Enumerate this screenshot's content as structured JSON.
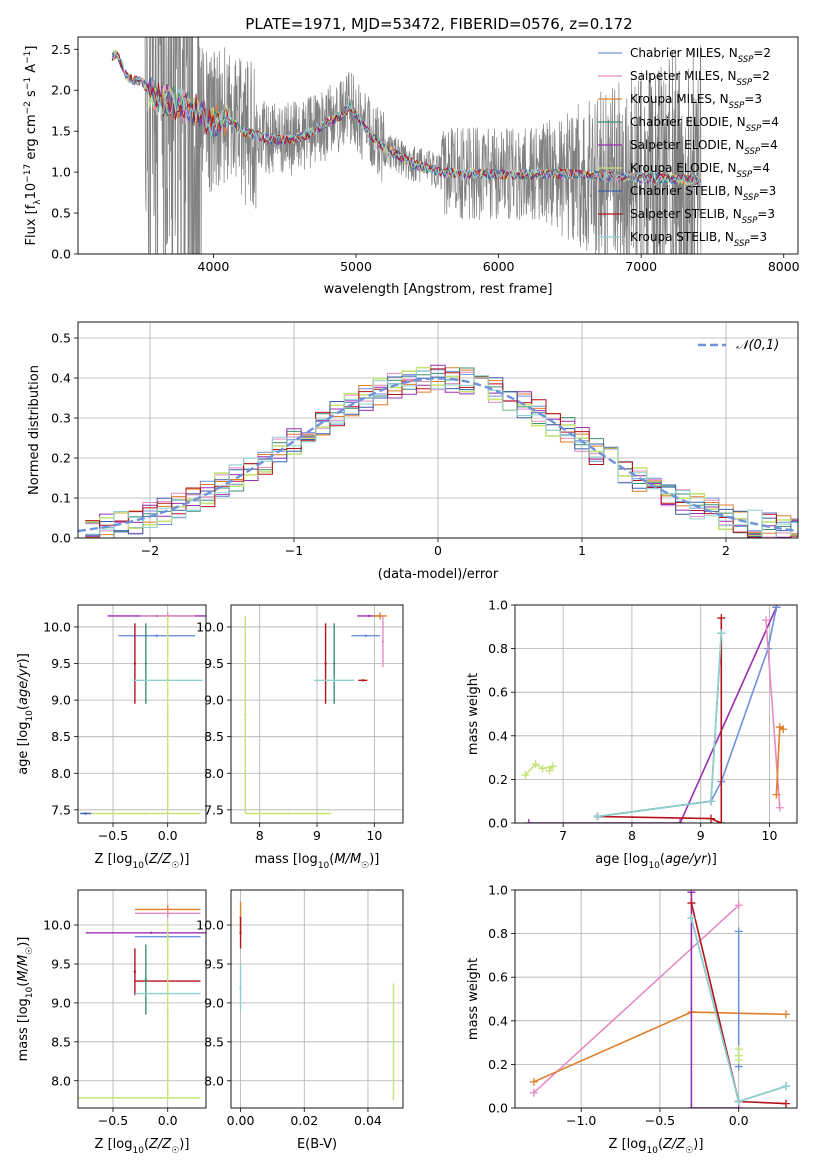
{
  "figure": {
    "title": "PLATE=1971, MJD=53472, FIBERID=0576, z=0.172"
  },
  "colors": {
    "Chabrier MILES": "#6f92dc",
    "Salpeter MILES": "#e58bc3",
    "Kroupa MILES": "#e07f2a",
    "Chabrier ELODIE": "#3f8f73",
    "Salpeter ELODIE": "#9b2fb2",
    "Kroupa ELODIE": "#c6e37a",
    "Chabrier STELIB": "#3b5fa8",
    "Salpeter STELIB": "#b5121b",
    "Kroupa STELIB": "#8fd0d0",
    "data": "#808080",
    "gauss": "#6f92dc"
  },
  "chart_data": [
    {
      "id": "spectrum",
      "type": "line",
      "xlabel": "wavelength [Angstrom, rest frame]",
      "ylabel": "Flux [f_λ 10^-17 erg cm^-2 s^-1 A^-1]",
      "xlim": [
        3050,
        8100
      ],
      "ylim": [
        0,
        2.65
      ],
      "xticks": [
        4000,
        5000,
        6000,
        7000,
        8000
      ],
      "yticks": [
        0.0,
        0.5,
        1.0,
        1.5,
        2.0,
        2.5
      ],
      "legend_position": "top-right",
      "legend": [
        {
          "base": "Chabrier MILES, N",
          "sub": "SSP",
          "tail": "=2"
        },
        {
          "base": "Salpeter MILES, N",
          "sub": "SSP",
          "tail": "=2"
        },
        {
          "base": "Kroupa MILES, N",
          "sub": "SSP",
          "tail": "=3"
        },
        {
          "base": "Chabrier ELODIE, N",
          "sub": "SSP",
          "tail": "=4"
        },
        {
          "base": "Salpeter ELODIE, N",
          "sub": "SSP",
          "tail": "=4"
        },
        {
          "base": "Kroupa ELODIE, N",
          "sub": "SSP",
          "tail": "=4"
        },
        {
          "base": "Chabrier STELIB, N",
          "sub": "SSP",
          "tail": "=3"
        },
        {
          "base": "Salpeter STELIB, N",
          "sub": "SSP",
          "tail": "=3"
        },
        {
          "base": "Kroupa STELIB, N",
          "sub": "SSP",
          "tail": "=3"
        }
      ],
      "data_range": [
        3520,
        7420
      ],
      "model_range": [
        3290,
        7420
      ],
      "model_curve": {
        "x": [
          3280,
          3320,
          3400,
          3500,
          3600,
          3700,
          3800,
          3900,
          4000,
          4100,
          4200,
          4300,
          4400,
          4500,
          4600,
          4700,
          4800,
          4900,
          4960,
          5000,
          5100,
          5200,
          5300,
          5400,
          5500,
          5600,
          5800,
          6000,
          6200,
          6400,
          6600,
          6800,
          7000,
          7200,
          7420
        ],
        "y": [
          2.4,
          2.45,
          2.15,
          2.1,
          1.9,
          1.85,
          1.8,
          1.7,
          1.6,
          1.65,
          1.5,
          1.45,
          1.4,
          1.4,
          1.42,
          1.5,
          1.6,
          1.7,
          1.8,
          1.7,
          1.45,
          1.3,
          1.2,
          1.1,
          1.05,
          1.0,
          0.98,
          0.97,
          0.97,
          0.98,
          0.97,
          0.95,
          0.93,
          0.92,
          0.9
        ]
      }
    },
    {
      "id": "residuals",
      "type": "histogram",
      "xlabel": "(data-model)/error",
      "ylabel": "Normed distribution",
      "xlim": [
        -2.5,
        2.5
      ],
      "ylim": [
        0,
        0.54
      ],
      "xticks": [
        -2,
        -1,
        0,
        1,
        2
      ],
      "yticks": [
        0.0,
        0.1,
        0.2,
        0.3,
        0.4,
        0.5
      ],
      "legend_position": "top-right",
      "legend": "𝒩(0,1)",
      "bin_width": 0.1
    },
    {
      "id": "age_vs_Z",
      "type": "errorbar",
      "xlabel": "Z [log10(Z/Z☉)]",
      "ylabel": "age [log10(age/yr)]",
      "xlim": [
        -0.82,
        0.35
      ],
      "ylim": [
        7.32,
        10.3
      ],
      "xticks": [
        -0.5,
        0.0
      ],
      "yticks": [
        7.5,
        8.0,
        8.5,
        9.0,
        9.5,
        10.0
      ],
      "points": [
        {
          "s": "Salpeter ELODIE",
          "x": -0.1,
          "y": 10.15,
          "xerr": 0.45,
          "yerr": 0.0
        },
        {
          "s": "Salpeter MILES",
          "x": 0.0,
          "y": 10.15,
          "xerr": 0.25,
          "yerr": 0.05
        },
        {
          "s": "Chabrier MILES",
          "x": -0.1,
          "y": 9.88,
          "xerr": 0.35,
          "yerr": 0.02
        },
        {
          "s": "Salpeter STELIB",
          "x": -0.3,
          "y": 9.5,
          "xerr": 0.0,
          "yerr": 0.55
        },
        {
          "s": "Chabrier ELODIE",
          "x": -0.2,
          "y": 9.5,
          "xerr": 0.0,
          "yerr": 0.55
        },
        {
          "s": "Kroupa STELIB",
          "x": 0.0,
          "y": 9.27,
          "xerr": 0.32,
          "yerr": 0.0
        },
        {
          "s": "Kroupa ELODIE",
          "x": 0.0,
          "y": 8.8,
          "xerr": 0.0,
          "yerr": 1.35
        },
        {
          "s": "Kroupa ELODIE",
          "x": -0.2,
          "y": 7.45,
          "xerr": 0.5,
          "yerr": 0.0
        },
        {
          "s": "Chabrier STELIB",
          "x": -0.75,
          "y": 7.45,
          "xerr": 0.05,
          "yerr": 0.0
        }
      ]
    },
    {
      "id": "age_vs_mass",
      "type": "errorbar",
      "xlabel": "mass [log10(M/M☉)]",
      "ylabel": "",
      "xlim": [
        7.5,
        10.5
      ],
      "ylim": [
        7.32,
        10.3
      ],
      "xticks": [
        8,
        9,
        10
      ],
      "yticks": [
        7.5,
        8.0,
        8.5,
        9.0,
        9.5,
        10.0
      ],
      "points": [
        {
          "s": "Salpeter ELODIE",
          "x": 9.9,
          "y": 10.15,
          "xerr": 0.2,
          "yerr": 0.0
        },
        {
          "s": "Kroupa MILES",
          "x": 10.1,
          "y": 10.15,
          "xerr": 0.12,
          "yerr": 0.05
        },
        {
          "s": "Salpeter MILES",
          "x": 10.15,
          "y": 9.8,
          "xerr": 0.0,
          "yerr": 0.35
        },
        {
          "s": "Chabrier MILES",
          "x": 9.85,
          "y": 9.88,
          "xerr": 0.25,
          "yerr": 0.02
        },
        {
          "s": "Salpeter STELIB",
          "x": 9.15,
          "y": 9.5,
          "xerr": 0.0,
          "yerr": 0.55
        },
        {
          "s": "Chabrier ELODIE",
          "x": 9.3,
          "y": 9.5,
          "xerr": 0.0,
          "yerr": 0.55
        },
        {
          "s": "Kroupa STELIB",
          "x": 9.3,
          "y": 9.27,
          "xerr": 0.35,
          "yerr": 0.0
        },
        {
          "s": "Salpeter STELIB",
          "x": 9.8,
          "y": 9.27,
          "xerr": 0.08,
          "yerr": 0.0
        },
        {
          "s": "Kroupa ELODIE",
          "x": 7.75,
          "y": 8.8,
          "xerr": 0.0,
          "yerr": 1.35
        },
        {
          "s": "Kroupa ELODIE",
          "x": 8.5,
          "y": 7.45,
          "xerr": 0.75,
          "yerr": 0.0
        }
      ]
    },
    {
      "id": "weight_vs_age",
      "type": "line",
      "xlabel": "age [log10(age/yr)]",
      "ylabel": "mass weight",
      "xlim": [
        6.3,
        10.4
      ],
      "ylim": [
        0,
        1.0
      ],
      "xticks": [
        7,
        8,
        9,
        10
      ],
      "yticks": [
        0.0,
        0.2,
        0.4,
        0.6,
        0.8,
        1.0
      ],
      "series": [
        {
          "s": "Salpeter ELODIE",
          "x": [
            6.5,
            8.7,
            10.1
          ],
          "y": [
            0.0,
            0.0,
            0.99
          ]
        },
        {
          "s": "Chabrier MILES",
          "x": [
            7.5,
            9.15,
            9.3,
            9.98,
            10.1
          ],
          "y": [
            0.03,
            0.1,
            0.19,
            0.8,
            0.99
          ]
        },
        {
          "s": "Salpeter STELIB",
          "x": [
            7.5,
            9.15,
            9.3,
            9.3
          ],
          "y": [
            0.03,
            0.02,
            0.0,
            0.94
          ]
        },
        {
          "s": "Chabrier ELODIE",
          "x": [
            7.5,
            9.15,
            9.3
          ],
          "y": [
            0.03,
            0.1,
            0.87
          ]
        },
        {
          "s": "Kroupa STELIB",
          "x": [
            7.5,
            9.15,
            9.3
          ],
          "y": [
            0.03,
            0.1,
            0.87
          ]
        },
        {
          "s": "Salpeter MILES",
          "x": [
            9.95,
            10.15
          ],
          "y": [
            0.93,
            0.07
          ]
        },
        {
          "s": "Kroupa MILES",
          "x": [
            10.1,
            10.15,
            10.2
          ],
          "y": [
            0.13,
            0.44,
            0.43
          ]
        },
        {
          "s": "Kroupa ELODIE",
          "x": [
            6.45,
            6.6,
            6.7,
            6.85,
            6.8
          ],
          "y": [
            0.22,
            0.27,
            0.25,
            0.26,
            0.24
          ]
        }
      ]
    },
    {
      "id": "mass_vs_Z",
      "type": "errorbar",
      "xlabel": "Z [log10(Z/Z☉)]",
      "ylabel": "mass [log10(M/M☉)]",
      "xlim": [
        -0.82,
        0.35
      ],
      "ylim": [
        7.65,
        10.45
      ],
      "xticks": [
        -0.5,
        0.0
      ],
      "yticks": [
        8.0,
        8.5,
        9.0,
        9.5,
        10.0
      ],
      "points": [
        {
          "s": "Kroupa MILES",
          "x": 0.0,
          "y": 10.2,
          "xerr": 0.3,
          "yerr": 0.05
        },
        {
          "s": "Salpeter MILES",
          "x": 0.0,
          "y": 10.15,
          "xerr": 0.3,
          "yerr": 0.05
        },
        {
          "s": "Salpeter ELODIE",
          "x": -0.15,
          "y": 9.9,
          "xerr": 0.6,
          "yerr": 0.0
        },
        {
          "s": "Chabrier MILES",
          "x": 0.0,
          "y": 9.85,
          "xerr": 0.3,
          "yerr": 0.05
        },
        {
          "s": "Salpeter STELIB",
          "x": 0.0,
          "y": 9.28,
          "xerr": 0.3,
          "yerr": 0.0
        },
        {
          "s": "Salpeter STELIB",
          "x": -0.3,
          "y": 9.4,
          "xerr": 0.0,
          "yerr": 0.3
        },
        {
          "s": "Chabrier ELODIE",
          "x": -0.2,
          "y": 9.3,
          "xerr": 0.0,
          "yerr": 0.45
        },
        {
          "s": "Kroupa STELIB",
          "x": 0.0,
          "y": 9.12,
          "xerr": 0.3,
          "yerr": 0.0
        },
        {
          "s": "Kroupa ELODIE",
          "x": 0.0,
          "y": 8.9,
          "xerr": 0.0,
          "yerr": 1.15
        },
        {
          "s": "Kroupa ELODIE",
          "x": -0.5,
          "y": 7.78,
          "xerr": 0.8,
          "yerr": 0.0
        }
      ]
    },
    {
      "id": "mass_vs_EBV",
      "type": "errorbar",
      "xlabel": "E(B-V)",
      "ylabel": "",
      "xlim": [
        -0.003,
        0.051
      ],
      "ylim": [
        7.65,
        10.45
      ],
      "xticks": [
        0.0,
        0.02,
        0.04
      ],
      "yticks": [
        8.0,
        8.5,
        9.0,
        9.5,
        10.0
      ],
      "points": [
        {
          "s": "Kroupa MILES",
          "x": 0.0,
          "y": 10.1,
          "xerr": 0.0,
          "yerr": 0.2
        },
        {
          "s": "Salpeter STELIB",
          "x": 0.0,
          "y": 9.9,
          "xerr": 0.0,
          "yerr": 0.2
        },
        {
          "s": "Kroupa STELIB",
          "x": 0.0,
          "y": 9.2,
          "xerr": 0.0,
          "yerr": 0.3
        },
        {
          "s": "Kroupa ELODIE",
          "x": 0.048,
          "y": 8.5,
          "xerr": 0.0,
          "yerr": 0.75
        }
      ]
    },
    {
      "id": "weight_vs_Z",
      "type": "line",
      "xlabel": "Z [log10(Z/Z☉)]",
      "ylabel": "mass weight",
      "xlim": [
        -1.42,
        0.37
      ],
      "ylim": [
        0,
        1.0
      ],
      "xticks": [
        -1.0,
        -0.5,
        0.0
      ],
      "yticks": [
        0.0,
        0.2,
        0.4,
        0.6,
        0.8,
        1.0
      ],
      "series": [
        {
          "s": "Salpeter MILES",
          "x": [
            -1.3,
            0.0
          ],
          "y": [
            0.07,
            0.93
          ]
        },
        {
          "s": "Kroupa MILES",
          "x": [
            -1.3,
            -0.3,
            0.3
          ],
          "y": [
            0.12,
            0.44,
            0.43
          ]
        },
        {
          "s": "Salpeter ELODIE",
          "x": [
            -0.3,
            -0.3,
            0.0
          ],
          "y": [
            0.99,
            0.0,
            0.0
          ]
        },
        {
          "s": "Salpeter STELIB",
          "x": [
            -0.3,
            0.0,
            0.3
          ],
          "y": [
            0.94,
            0.03,
            0.02
          ]
        },
        {
          "s": "Chabrier ELODIE",
          "x": [
            -0.3,
            0.0,
            0.3
          ],
          "y": [
            0.87,
            0.03,
            0.1
          ]
        },
        {
          "s": "Kroupa STELIB",
          "x": [
            -0.3,
            0.0,
            0.3
          ],
          "y": [
            0.87,
            0.03,
            0.1
          ]
        },
        {
          "s": "Chabrier MILES",
          "x": [
            0.0,
            0.0
          ],
          "y": [
            0.19,
            0.81
          ]
        },
        {
          "s": "Kroupa ELODIE",
          "x": [
            0.0,
            0.0,
            0.0
          ],
          "y": [
            0.22,
            0.24,
            0.27
          ]
        }
      ]
    }
  ]
}
